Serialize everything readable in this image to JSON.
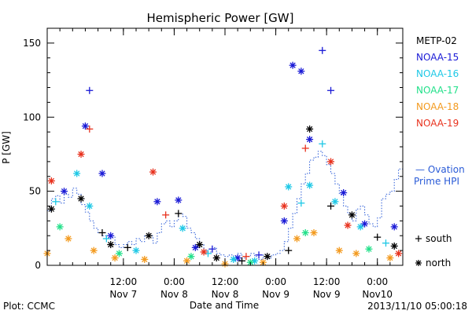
{
  "chart_data": {
    "type": "scatter",
    "title": "Hemispheric Power [GW]",
    "ylabel": "P [GW]",
    "xlabel": "Date and Time",
    "ylim": [
      0,
      160
    ],
    "yticks": [
      0,
      50,
      100,
      150
    ],
    "xlim": [
      "2013-11-06T18:00",
      "2013-11-10T06:00"
    ],
    "xticks": [
      {
        "t": "2013-11-07T12:00",
        "line1": "12:00",
        "line2": "Nov 7"
      },
      {
        "t": "2013-11-08T00:00",
        "line1": "0:00",
        "line2": "Nov 8"
      },
      {
        "t": "2013-11-08T12:00",
        "line1": "12:00",
        "line2": "Nov 8"
      },
      {
        "t": "2013-11-09T00:00",
        "line1": "0:00",
        "line2": "Nov 9"
      },
      {
        "t": "2013-11-09T12:00",
        "line1": "12:00",
        "line2": "Nov 9"
      },
      {
        "t": "2013-11-10T00:00",
        "line1": "0:00",
        "line2": "Nov10"
      }
    ],
    "legend_position": "right",
    "series": [
      {
        "name": "METP-02",
        "color": "#000000"
      },
      {
        "name": "NOAA-15",
        "color": "#1a1ad6"
      },
      {
        "name": "NOAA-16",
        "color": "#1ec8e6"
      },
      {
        "name": "NOAA-17",
        "color": "#22e08a"
      },
      {
        "name": "NOAA-18",
        "color": "#f39a1e"
      },
      {
        "name": "NOAA-19",
        "color": "#e8321e"
      }
    ],
    "ovation_label_line1": "— Ovation",
    "ovation_label_line2": "Prime HPI",
    "ovation_color": "#2a5bd7",
    "ovation": [
      [
        "2013-11-06T18:00",
        37
      ],
      [
        "2013-11-06T19:00",
        45
      ],
      [
        "2013-11-06T20:00",
        47
      ],
      [
        "2013-11-06T21:00",
        42
      ],
      [
        "2013-11-06T22:00",
        48
      ],
      [
        "2013-11-06T23:00",
        46
      ],
      [
        "2013-11-07T00:00",
        52
      ],
      [
        "2013-11-07T01:00",
        48
      ],
      [
        "2013-11-07T02:00",
        41
      ],
      [
        "2013-11-07T03:00",
        36
      ],
      [
        "2013-11-07T04:00",
        30
      ],
      [
        "2013-11-07T05:00",
        25
      ],
      [
        "2013-11-07T06:00",
        22
      ],
      [
        "2013-11-07T07:00",
        20
      ],
      [
        "2013-11-07T08:00",
        18
      ],
      [
        "2013-11-07T09:00",
        19
      ],
      [
        "2013-11-07T10:00",
        14
      ],
      [
        "2013-11-07T11:00",
        12
      ],
      [
        "2013-11-07T12:00",
        14
      ],
      [
        "2013-11-07T13:00",
        16
      ],
      [
        "2013-11-07T14:00",
        14
      ],
      [
        "2013-11-07T15:00",
        18
      ],
      [
        "2013-11-07T16:00",
        16
      ],
      [
        "2013-11-07T17:00",
        20
      ],
      [
        "2013-11-07T18:00",
        20
      ],
      [
        "2013-11-07T19:00",
        15
      ],
      [
        "2013-11-07T20:00",
        22
      ],
      [
        "2013-11-07T21:00",
        28
      ],
      [
        "2013-11-07T22:00",
        30
      ],
      [
        "2013-11-07T23:00",
        26
      ],
      [
        "2013-11-08T00:00",
        30
      ],
      [
        "2013-11-08T01:00",
        35
      ],
      [
        "2013-11-08T02:00",
        33
      ],
      [
        "2013-11-08T03:00",
        25
      ],
      [
        "2013-11-08T04:00",
        22
      ],
      [
        "2013-11-08T05:00",
        18
      ],
      [
        "2013-11-08T06:00",
        14
      ],
      [
        "2013-11-08T07:00",
        10
      ],
      [
        "2013-11-08T08:00",
        9
      ],
      [
        "2013-11-08T09:00",
        12
      ],
      [
        "2013-11-08T10:00",
        8
      ],
      [
        "2013-11-08T11:00",
        7
      ],
      [
        "2013-11-08T12:00",
        6
      ],
      [
        "2013-11-08T13:00",
        7
      ],
      [
        "2013-11-08T14:00",
        5
      ],
      [
        "2013-11-08T15:00",
        8
      ],
      [
        "2013-11-08T16:00",
        5
      ],
      [
        "2013-11-08T17:00",
        6
      ],
      [
        "2013-11-08T18:00",
        8
      ],
      [
        "2013-11-08T19:00",
        6
      ],
      [
        "2013-11-08T20:00",
        4
      ],
      [
        "2013-11-08T21:00",
        7
      ],
      [
        "2013-11-08T22:00",
        5
      ],
      [
        "2013-11-08T23:00",
        7
      ],
      [
        "2013-11-09T00:00",
        8
      ],
      [
        "2013-11-09T01:00",
        10
      ],
      [
        "2013-11-09T02:00",
        16
      ],
      [
        "2013-11-09T03:00",
        25
      ],
      [
        "2013-11-09T04:00",
        35
      ],
      [
        "2013-11-09T05:00",
        45
      ],
      [
        "2013-11-09T06:00",
        55
      ],
      [
        "2013-11-09T07:00",
        62
      ],
      [
        "2013-11-09T08:00",
        71
      ],
      [
        "2013-11-09T09:00",
        73
      ],
      [
        "2013-11-09T10:00",
        77
      ],
      [
        "2013-11-09T11:00",
        74
      ],
      [
        "2013-11-09T12:00",
        68
      ],
      [
        "2013-11-09T13:00",
        62
      ],
      [
        "2013-11-09T14:00",
        55
      ],
      [
        "2013-11-09T15:00",
        48
      ],
      [
        "2013-11-09T16:00",
        40
      ],
      [
        "2013-11-09T17:00",
        35
      ],
      [
        "2013-11-09T18:00",
        30
      ],
      [
        "2013-11-09T19:00",
        38
      ],
      [
        "2013-11-09T20:00",
        40
      ],
      [
        "2013-11-09T21:00",
        34
      ],
      [
        "2013-11-09T22:00",
        28
      ],
      [
        "2013-11-09T23:00",
        26
      ],
      [
        "2013-11-10T00:00",
        32
      ],
      [
        "2013-11-10T01:00",
        45
      ],
      [
        "2013-11-10T02:00",
        48
      ],
      [
        "2013-11-10T03:00",
        50
      ],
      [
        "2013-11-10T04:00",
        58
      ],
      [
        "2013-11-10T05:00",
        65
      ]
    ],
    "points": [
      {
        "s": 0,
        "t": "2013-11-06T19:00",
        "v": 38,
        "h": "north"
      },
      {
        "s": 0,
        "t": "2013-11-07T02:00",
        "v": 45,
        "h": "north"
      },
      {
        "s": 0,
        "t": "2013-11-07T07:00",
        "v": 22,
        "h": "south"
      },
      {
        "s": 0,
        "t": "2013-11-07T09:00",
        "v": 14,
        "h": "north"
      },
      {
        "s": 0,
        "t": "2013-11-07T13:00",
        "v": 12,
        "h": "south"
      },
      {
        "s": 0,
        "t": "2013-11-07T18:00",
        "v": 20,
        "h": "north"
      },
      {
        "s": 0,
        "t": "2013-11-08T01:00",
        "v": 35,
        "h": "south"
      },
      {
        "s": 0,
        "t": "2013-11-08T06:00",
        "v": 14,
        "h": "north"
      },
      {
        "s": 0,
        "t": "2013-11-08T10:00",
        "v": 5,
        "h": "north"
      },
      {
        "s": 0,
        "t": "2013-11-08T16:00",
        "v": 3,
        "h": "south"
      },
      {
        "s": 0,
        "t": "2013-11-08T22:00",
        "v": 6,
        "h": "north"
      },
      {
        "s": 0,
        "t": "2013-11-09T03:00",
        "v": 10,
        "h": "south"
      },
      {
        "s": 0,
        "t": "2013-11-09T08:00",
        "v": 92,
        "h": "north"
      },
      {
        "s": 0,
        "t": "2013-11-09T13:00",
        "v": 40,
        "h": "south"
      },
      {
        "s": 0,
        "t": "2013-11-09T18:00",
        "v": 34,
        "h": "north"
      },
      {
        "s": 0,
        "t": "2013-11-10T00:00",
        "v": 19,
        "h": "south"
      },
      {
        "s": 0,
        "t": "2013-11-10T04:00",
        "v": 13,
        "h": "north"
      },
      {
        "s": 1,
        "t": "2013-11-06T22:00",
        "v": 50,
        "h": "north"
      },
      {
        "s": 1,
        "t": "2013-11-07T03:00",
        "v": 94,
        "h": "north"
      },
      {
        "s": 1,
        "t": "2013-11-07T04:00",
        "v": 118,
        "h": "south"
      },
      {
        "s": 1,
        "t": "2013-11-07T07:00",
        "v": 62,
        "h": "north"
      },
      {
        "s": 1,
        "t": "2013-11-07T09:00",
        "v": 20,
        "h": "north"
      },
      {
        "s": 1,
        "t": "2013-11-07T20:00",
        "v": 43,
        "h": "north"
      },
      {
        "s": 1,
        "t": "2013-11-08T01:00",
        "v": 44,
        "h": "north"
      },
      {
        "s": 1,
        "t": "2013-11-08T05:00",
        "v": 12,
        "h": "north"
      },
      {
        "s": 1,
        "t": "2013-11-08T09:00",
        "v": 11,
        "h": "south"
      },
      {
        "s": 1,
        "t": "2013-11-08T15:00",
        "v": 5,
        "h": "north"
      },
      {
        "s": 1,
        "t": "2013-11-08T20:00",
        "v": 7,
        "h": "south"
      },
      {
        "s": 1,
        "t": "2013-11-09T02:00",
        "v": 30,
        "h": "north"
      },
      {
        "s": 1,
        "t": "2013-11-09T04:00",
        "v": 135,
        "h": "north"
      },
      {
        "s": 1,
        "t": "2013-11-09T06:00",
        "v": 131,
        "h": "north"
      },
      {
        "s": 1,
        "t": "2013-11-09T08:00",
        "v": 85,
        "h": "north"
      },
      {
        "s": 1,
        "t": "2013-11-09T11:00",
        "v": 145,
        "h": "south"
      },
      {
        "s": 1,
        "t": "2013-11-09T13:00",
        "v": 118,
        "h": "south"
      },
      {
        "s": 1,
        "t": "2013-11-09T16:00",
        "v": 49,
        "h": "north"
      },
      {
        "s": 1,
        "t": "2013-11-09T21:00",
        "v": 28,
        "h": "north"
      },
      {
        "s": 1,
        "t": "2013-11-10T04:00",
        "v": 26,
        "h": "north"
      },
      {
        "s": 2,
        "t": "2013-11-06T20:00",
        "v": 43,
        "h": "south"
      },
      {
        "s": 2,
        "t": "2013-11-07T01:00",
        "v": 62,
        "h": "north"
      },
      {
        "s": 2,
        "t": "2013-11-07T04:00",
        "v": 40,
        "h": "north"
      },
      {
        "s": 2,
        "t": "2013-11-07T08:00",
        "v": 18,
        "h": "south"
      },
      {
        "s": 2,
        "t": "2013-11-07T15:00",
        "v": 10,
        "h": "north"
      },
      {
        "s": 2,
        "t": "2013-11-08T02:00",
        "v": 25,
        "h": "north"
      },
      {
        "s": 2,
        "t": "2013-11-08T08:00",
        "v": 8,
        "h": "south"
      },
      {
        "s": 2,
        "t": "2013-11-08T14:00",
        "v": 4,
        "h": "north"
      },
      {
        "s": 2,
        "t": "2013-11-08T19:00",
        "v": 3,
        "h": "north"
      },
      {
        "s": 2,
        "t": "2013-11-09T03:00",
        "v": 53,
        "h": "north"
      },
      {
        "s": 2,
        "t": "2013-11-09T06:00",
        "v": 42,
        "h": "south"
      },
      {
        "s": 2,
        "t": "2013-11-09T08:00",
        "v": 54,
        "h": "north"
      },
      {
        "s": 2,
        "t": "2013-11-09T11:00",
        "v": 82,
        "h": "south"
      },
      {
        "s": 2,
        "t": "2013-11-09T14:00",
        "v": 43,
        "h": "north"
      },
      {
        "s": 2,
        "t": "2013-11-09T20:00",
        "v": 26,
        "h": "north"
      },
      {
        "s": 2,
        "t": "2013-11-10T02:00",
        "v": 15,
        "h": "south"
      },
      {
        "s": 3,
        "t": "2013-11-06T21:00",
        "v": 26,
        "h": "north"
      },
      {
        "s": 3,
        "t": "2013-11-07T11:00",
        "v": 8,
        "h": "north"
      },
      {
        "s": 3,
        "t": "2013-11-08T04:00",
        "v": 6,
        "h": "north"
      },
      {
        "s": 3,
        "t": "2013-11-08T18:00",
        "v": 2,
        "h": "north"
      },
      {
        "s": 3,
        "t": "2013-11-09T07:00",
        "v": 22,
        "h": "north"
      },
      {
        "s": 3,
        "t": "2013-11-09T22:00",
        "v": 11,
        "h": "north"
      },
      {
        "s": 4,
        "t": "2013-11-06T18:00",
        "v": 8,
        "h": "north"
      },
      {
        "s": 4,
        "t": "2013-11-06T23:00",
        "v": 18,
        "h": "north"
      },
      {
        "s": 4,
        "t": "2013-11-07T05:00",
        "v": 10,
        "h": "north"
      },
      {
        "s": 4,
        "t": "2013-11-07T10:00",
        "v": 5,
        "h": "north"
      },
      {
        "s": 4,
        "t": "2013-11-07T17:00",
        "v": 4,
        "h": "north"
      },
      {
        "s": 4,
        "t": "2013-11-08T03:00",
        "v": 3,
        "h": "north"
      },
      {
        "s": 4,
        "t": "2013-11-08T12:00",
        "v": 1,
        "h": "north"
      },
      {
        "s": 4,
        "t": "2013-11-08T21:00",
        "v": 2,
        "h": "north"
      },
      {
        "s": 4,
        "t": "2013-11-09T05:00",
        "v": 18,
        "h": "north"
      },
      {
        "s": 4,
        "t": "2013-11-09T09:00",
        "v": 22,
        "h": "north"
      },
      {
        "s": 4,
        "t": "2013-11-09T15:00",
        "v": 10,
        "h": "north"
      },
      {
        "s": 4,
        "t": "2013-11-09T19:00",
        "v": 8,
        "h": "north"
      },
      {
        "s": 4,
        "t": "2013-11-10T03:00",
        "v": 5,
        "h": "north"
      },
      {
        "s": 5,
        "t": "2013-11-06T19:00",
        "v": 57,
        "h": "north"
      },
      {
        "s": 5,
        "t": "2013-11-07T02:00",
        "v": 75,
        "h": "north"
      },
      {
        "s": 5,
        "t": "2013-11-07T04:00",
        "v": 92,
        "h": "south"
      },
      {
        "s": 5,
        "t": "2013-11-07T19:00",
        "v": 63,
        "h": "north"
      },
      {
        "s": 5,
        "t": "2013-11-07T22:00",
        "v": 34,
        "h": "south"
      },
      {
        "s": 5,
        "t": "2013-11-08T07:00",
        "v": 9,
        "h": "north"
      },
      {
        "s": 5,
        "t": "2013-11-08T17:00",
        "v": 6,
        "h": "south"
      },
      {
        "s": 5,
        "t": "2013-11-09T02:00",
        "v": 40,
        "h": "north"
      },
      {
        "s": 5,
        "t": "2013-11-09T07:00",
        "v": 79,
        "h": "south"
      },
      {
        "s": 5,
        "t": "2013-11-09T13:00",
        "v": 70,
        "h": "north"
      },
      {
        "s": 5,
        "t": "2013-11-09T17:00",
        "v": 27,
        "h": "north"
      },
      {
        "s": 5,
        "t": "2013-11-10T05:00",
        "v": 8,
        "h": "north"
      }
    ],
    "symbol_legend": [
      {
        "symbol": "south",
        "label": "south"
      },
      {
        "symbol": "north",
        "label": "north"
      }
    ]
  },
  "footer": {
    "plot_credit": "Plot: CCMC",
    "timestamp": "2013/11/10 05:00:18"
  }
}
